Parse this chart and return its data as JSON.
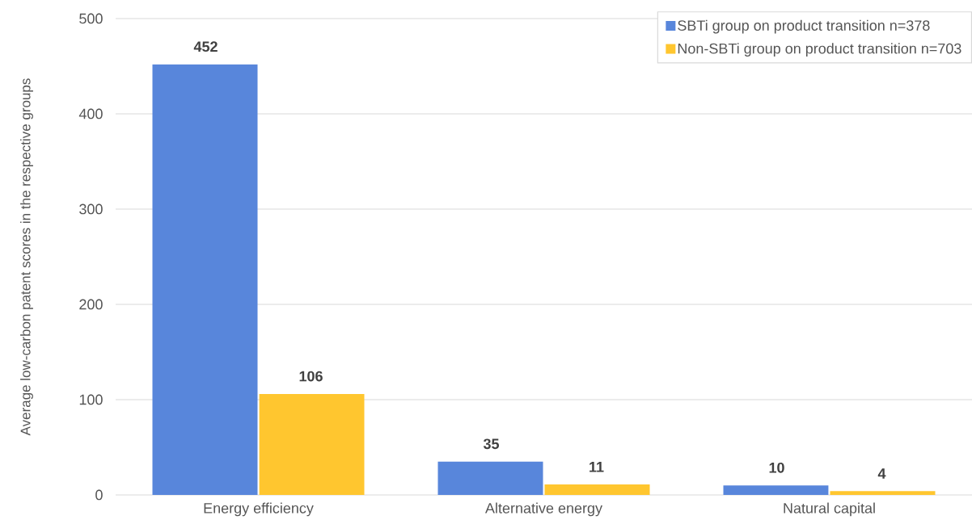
{
  "chart_data": {
    "type": "bar",
    "ylabel": "Average low-carbon patent scores in the respective groups",
    "categories": [
      "Energy efficiency",
      "Alternative energy",
      "Natural capital"
    ],
    "series": [
      {
        "name": "SBTi group on product transition n=378",
        "color": "#5886db",
        "values": [
          452,
          35,
          10
        ]
      },
      {
        "name": "Non-SBTi group on product transition n=703",
        "color": "#ffc62f",
        "values": [
          106,
          11,
          4
        ]
      }
    ],
    "ylim": [
      0,
      500
    ],
    "yticks": [
      0,
      100,
      200,
      300,
      400,
      500
    ],
    "grid": "y",
    "legend": "top right",
    "data_labels": true
  }
}
